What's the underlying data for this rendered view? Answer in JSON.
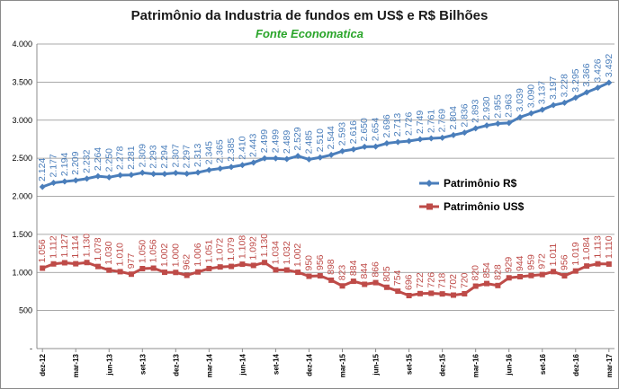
{
  "chart_data": {
    "type": "line",
    "title": "Patrimônio da Industria de fundos em US$ e R$ Bilhões",
    "subtitle": "Fonte Economatica",
    "xlabel": "",
    "ylabel": "",
    "ylim": [
      0,
      4000
    ],
    "yticks": [
      "-",
      "500",
      "1.000",
      "1.500",
      "2.000",
      "2.500",
      "3.000",
      "3.500",
      "4.000"
    ],
    "ytick_values": [
      0,
      500,
      1000,
      1500,
      2000,
      2500,
      3000,
      3500,
      4000
    ],
    "x_tick_labels": [
      "dez-12",
      "mar-13",
      "jun-13",
      "set-13",
      "dez-13",
      "mar-14",
      "jun-14",
      "set-14",
      "dez-14",
      "mar-15",
      "jun-15",
      "set-15",
      "dez-15",
      "mar-16",
      "jun-16",
      "set-16",
      "dez-16",
      "mar-17"
    ],
    "grid": true,
    "legend_position": "right",
    "series": [
      {
        "name": "Patrimônio R$",
        "color": "#4a7ebb",
        "marker": "diamond",
        "values": [
          2124,
          2177,
          2194,
          2209,
          2232,
          2264,
          2250,
          2278,
          2281,
          2309,
          2293,
          2294,
          2307,
          2297,
          2313,
          2345,
          2365,
          2385,
          2410,
          2443,
          2499,
          2499,
          2489,
          2529,
          2485,
          2510,
          2544,
          2593,
          2616,
          2650,
          2654,
          2696,
          2713,
          2726,
          2749,
          2761,
          2769,
          2804,
          2836,
          2893,
          2930,
          2955,
          2963,
          3039,
          3090,
          3137,
          3197,
          3228,
          3295,
          3366,
          3426,
          3492
        ],
        "labels": [
          "2.124",
          "2.177",
          "2.194",
          "2.209",
          "2.232",
          "2.264",
          "2.250",
          "2.278",
          "2.281",
          "2.309",
          "2.293",
          "2.294",
          "2.307",
          "2.297",
          "2.313",
          "2.345",
          "2.365",
          "2.385",
          "2.410",
          "2.443",
          "2.499",
          "2.499",
          "2.489",
          "2.529",
          "2.485",
          "2.510",
          "2.544",
          "2.593",
          "2.616",
          "2.650",
          "2.654",
          "2.696",
          "2.713",
          "2.726",
          "2.749",
          "2.761",
          "2.769",
          "2.804",
          "2.836",
          "2.893",
          "2.930",
          "2.955",
          "2.963",
          "3.039",
          "3.090",
          "3.137",
          "3.197",
          "3.228",
          "3.295",
          "3.366",
          "3.426",
          "3.492"
        ]
      },
      {
        "name": "Patrimônio US$",
        "color": "#be4b48",
        "marker": "square",
        "values": [
          1056,
          1112,
          1127,
          1114,
          1130,
          1078,
          1030,
          1010,
          977,
          1050,
          1056,
          1002,
          1000,
          962,
          1006,
          1051,
          1072,
          1079,
          1108,
          1092,
          1130,
          1034,
          1032,
          1002,
          950,
          956,
          898,
          823,
          884,
          844,
          866,
          805,
          754,
          696,
          722,
          726,
          718,
          702,
          720,
          820,
          854,
          828,
          929,
          944,
          959,
          972,
          1011,
          956,
          1019,
          1084,
          1113,
          1110
        ],
        "labels": [
          "1.056",
          "1.112",
          "1.127",
          "1.114",
          "1.130",
          "1.078",
          "1.030",
          "1.010",
          "977",
          "1.050",
          "1.056",
          "1.002",
          "1.000",
          "962",
          "1.006",
          "1.051",
          "1.072",
          "1.079",
          "1.108",
          "1.092",
          "1.130",
          "1.034",
          "1.032",
          "1.002",
          "950",
          "956",
          "898",
          "823",
          "884",
          "844",
          "866",
          "805",
          "754",
          "696",
          "722",
          "726",
          "718",
          "702",
          "720",
          "820",
          "854",
          "828",
          "929",
          "944",
          "959",
          "972",
          "1.011",
          "956",
          "1.019",
          "1.084",
          "1.113",
          "1.110"
        ]
      }
    ]
  }
}
